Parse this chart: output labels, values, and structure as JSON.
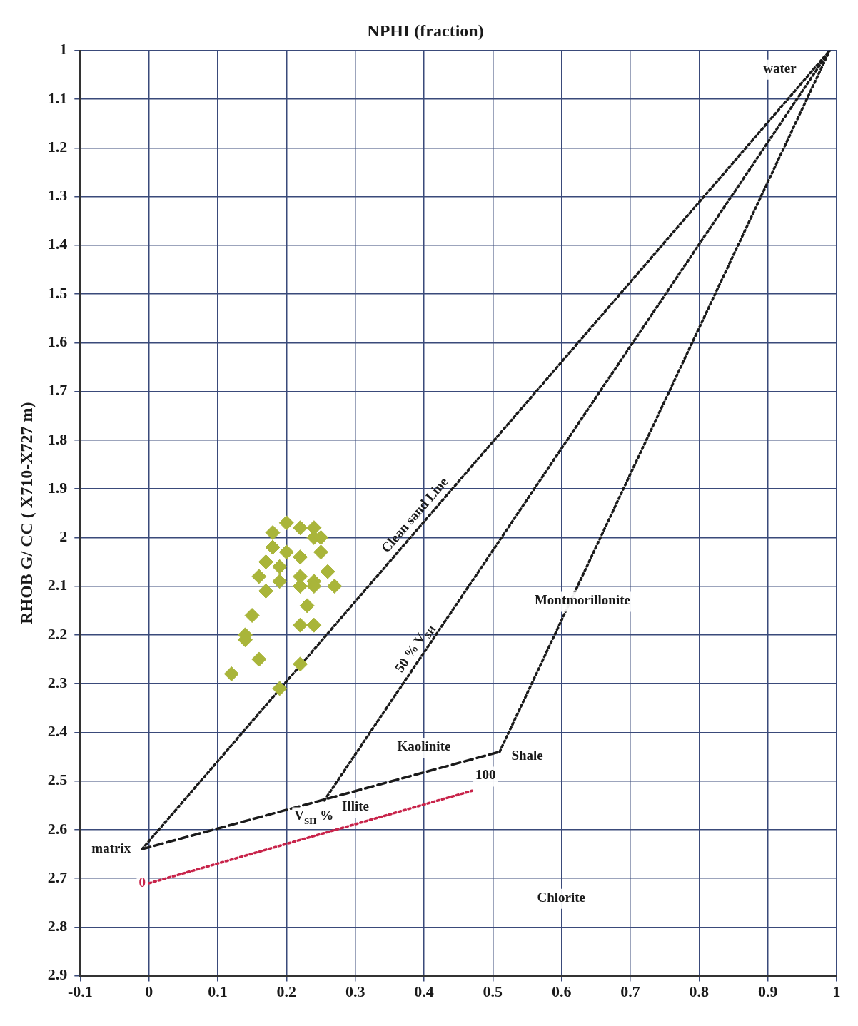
{
  "chart_data": {
    "type": "scatter",
    "xlabel": "NPHI (fraction)",
    "ylabel": "RHOB G/ CC ( X710-X727 m)",
    "xlim": [
      -0.1,
      1
    ],
    "xticks": [
      -0.1,
      0,
      0.1,
      0.2,
      0.3,
      0.4,
      0.5,
      0.6,
      0.7,
      0.8,
      0.9,
      1
    ],
    "ylim": [
      2.9,
      1
    ],
    "yticks": [
      1,
      1.1,
      1.2,
      1.3,
      1.4,
      1.5,
      1.6,
      1.7,
      1.8,
      1.9,
      2,
      2.1,
      2.2,
      2.3,
      2.4,
      2.5,
      2.6,
      2.7,
      2.8,
      2.9
    ],
    "grid": true,
    "legend": false,
    "marker": "diamond",
    "series": [
      {
        "color": "#a9b53a",
        "x": [
          0.2,
          0.22,
          0.24,
          0.18,
          0.2,
          0.22,
          0.17,
          0.19,
          0.16,
          0.19,
          0.22,
          0.25,
          0.24,
          0.22,
          0.26,
          0.27,
          0.24,
          0.17,
          0.23,
          0.22,
          0.24,
          0.15,
          0.14,
          0.14,
          0.16,
          0.22,
          0.12,
          0.19,
          0.18,
          0.24,
          0.25
        ],
        "values": [
          1.97,
          1.98,
          2.0,
          2.02,
          2.03,
          2.04,
          2.05,
          2.06,
          2.08,
          2.09,
          2.08,
          2.03,
          2.09,
          2.1,
          2.07,
          2.1,
          2.1,
          2.11,
          2.14,
          2.18,
          2.18,
          2.16,
          2.2,
          2.21,
          2.25,
          2.26,
          2.28,
          2.31,
          1.99,
          1.98,
          2.0
        ]
      },
      {
        "type": "line",
        "color": "#1a1a1a",
        "line_style": "dotted",
        "marker": "none",
        "x": [
          -0.01,
          0.99
        ],
        "values": [
          2.64,
          1.0
        ]
      },
      {
        "type": "line",
        "color": "#1a1a1a",
        "line_style": "dashed",
        "marker": "none",
        "x": [
          -0.01,
          0.51
        ],
        "values": [
          2.64,
          2.44
        ]
      },
      {
        "type": "line",
        "color": "#1a1a1a",
        "line_style": "dotted",
        "marker": "none",
        "x": [
          0.51,
          0.99
        ],
        "values": [
          2.44,
          1.0
        ]
      },
      {
        "type": "line",
        "color": "#1a1a1a",
        "line_style": "dotted",
        "marker": "none",
        "x": [
          0.255,
          0.99
        ],
        "values": [
          2.54,
          1.0
        ]
      },
      {
        "type": "line",
        "color": "#c8234a",
        "line_style": "dotted",
        "marker": "none",
        "x": [
          0.0,
          0.47
        ],
        "values": [
          2.71,
          2.52
        ]
      }
    ],
    "annotations": [
      "water",
      {
        "text": "Clean sand Line",
        "x": 0.4,
        "y": 1.97
      },
      {
        "text": "50 % V$_{SH}$",
        "x": 0.4,
        "y": 2.24
      },
      "Montmorillonite",
      "Kaolinite",
      "Shale",
      "Illite",
      "matrix",
      "V$_{SH}$ %",
      "0",
      "100",
      "Chlorite"
    ]
  }
}
